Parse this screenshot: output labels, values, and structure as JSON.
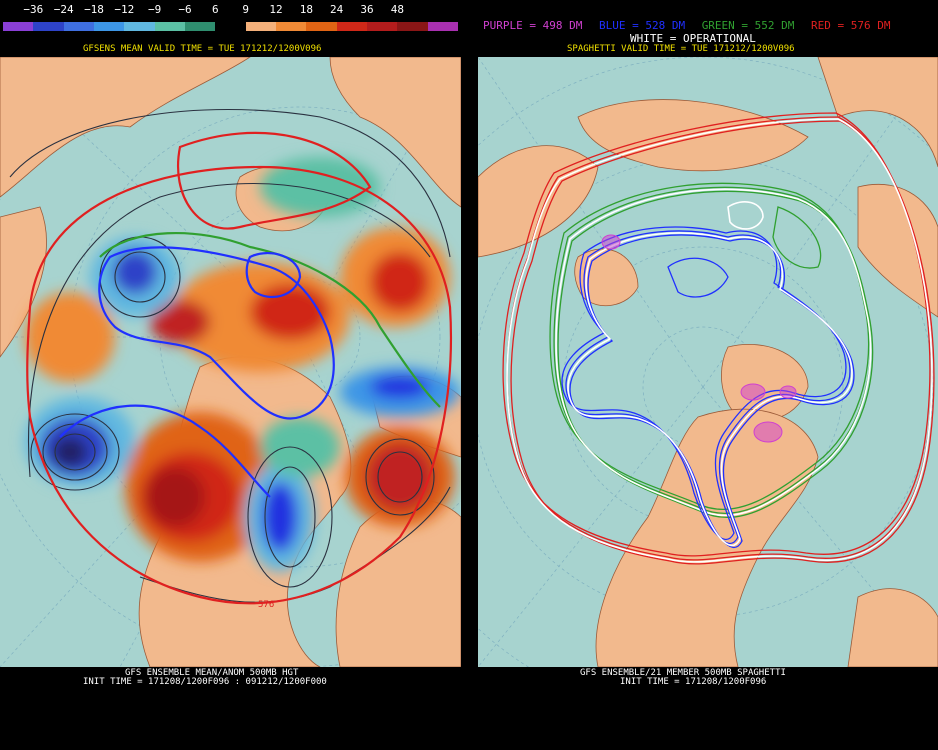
{
  "colorbar": {
    "labels": [
      "−36",
      "−24",
      "−18",
      "−12",
      "−9",
      "−6",
      "6",
      "9",
      "12",
      "18",
      "24",
      "36",
      "48"
    ],
    "colors": [
      "#8a3fd6",
      "#2e43c8",
      "#3f6fe0",
      "#3d96e6",
      "#60b8e0",
      "#5bc0a4",
      "#2f8e6f",
      "#000000",
      "#f4b07a",
      "#f08a36",
      "#e06414",
      "#d02818",
      "#b31c1c",
      "#8a1616",
      "#a830b0"
    ]
  },
  "left_panel": {
    "header": "GFSENS MEAN VALID TIME = TUE 171212/1200V096",
    "footer_line1": "GFS ENSEMBLE MEAN/ANOM 500MB HGT",
    "footer_line2": "INIT TIME = 171208/1200F096 : 091212/1200F000",
    "contour_label": "576"
  },
  "right_panel": {
    "legend": [
      {
        "text": "PURPLE = 498 DM",
        "color": "#d040d0"
      },
      {
        "text": "BLUE = 528 DM",
        "color": "#2030ff"
      },
      {
        "text": "GREEN = 552 DM",
        "color": "#30a030"
      },
      {
        "text": "RED = 576 DM",
        "color": "#e02020"
      }
    ],
    "operational_note": "WHITE = OPERATIONAL",
    "header": "SPAGHETTI VALID TIME = TUE 171212/1200V096",
    "footer_line1": "GFS ENSEMBLE/21 MEMBER 500MB SPAGHETTI",
    "footer_line2": "INIT TIME = 171208/1200F096"
  }
}
